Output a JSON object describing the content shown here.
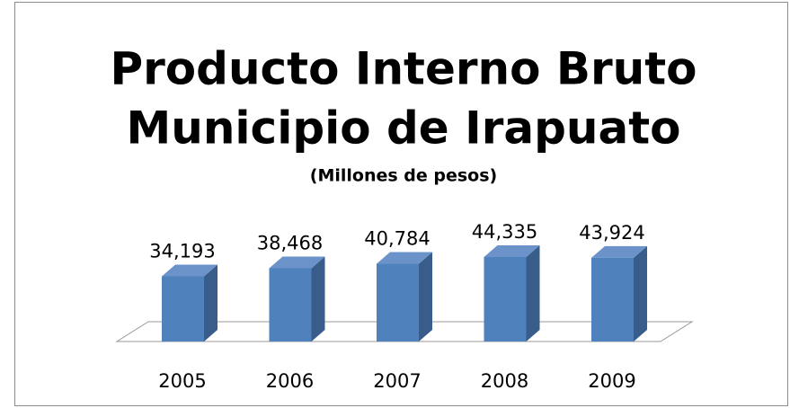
{
  "chart_data": {
    "type": "bar3d",
    "title": [
      "Producto Interno Bruto",
      "Municipio de Irapuato"
    ],
    "subtitle": "(Millones de pesos)",
    "categories": [
      "2005",
      "2006",
      "2007",
      "2008",
      "2009"
    ],
    "values": [
      34193,
      38468,
      40784,
      44335,
      43924
    ],
    "value_labels": [
      "34,193",
      "38,468",
      "40,784",
      "44,335",
      "43,924"
    ],
    "color": "#4f81bd"
  }
}
